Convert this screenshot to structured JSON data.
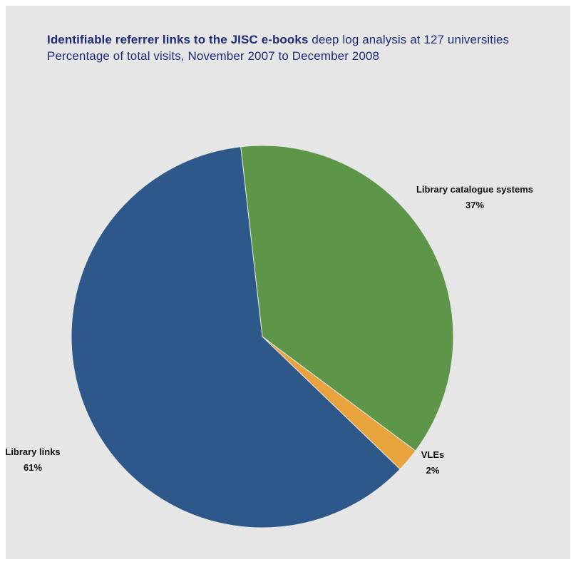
{
  "title": {
    "bold": "Identifiable referrer links to the JISC e-books",
    "rest": "deep log analysis at 127 universities",
    "subtitle": "Percentage of total visits, November 2007 to December 2008"
  },
  "chart_data": {
    "type": "pie",
    "title": "Identifiable referrer links to the JISC e-books deep log analysis at 127 universities",
    "subtitle": "Percentage of total visits, November 2007 to December 2008",
    "legend": "none",
    "slices": [
      {
        "label": "Library catalogue systems",
        "value": 37,
        "value_label": "37%",
        "color": "#5d9648"
      },
      {
        "label": "VLEs",
        "value": 2,
        "value_label": "2%",
        "color": "#e8a33d"
      },
      {
        "label": "Library links",
        "value": 61,
        "value_label": "61%",
        "color": "#2e578a"
      }
    ]
  }
}
